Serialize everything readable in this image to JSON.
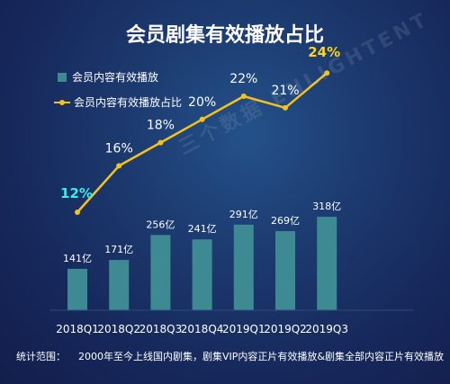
{
  "chart_data": {
    "type": "bar+line",
    "title": "会员剧集有效播放占比",
    "categories": [
      "2018Q1",
      "2018Q2",
      "2018Q3",
      "2018Q4",
      "2019Q1",
      "2019Q2",
      "2019Q3"
    ],
    "series": [
      {
        "name": "会员内容有效播放",
        "kind": "bar",
        "values": [
          141,
          171,
          256,
          241,
          291,
          269,
          318
        ],
        "labels": [
          "141亿",
          "171亿",
          "256亿",
          "241亿",
          "291亿",
          "269亿",
          "318亿"
        ],
        "color": "#3d8a92"
      },
      {
        "name": "会员内容有效播放占比",
        "kind": "line",
        "values": [
          12,
          16,
          18,
          20,
          22,
          21,
          24
        ],
        "labels": [
          "12%",
          "16%",
          "18%",
          "20%",
          "22%",
          "21%",
          "24%"
        ],
        "color": "#f7c217"
      }
    ],
    "highlight_colors": {
      "first": "#35f0ea",
      "last": "#ffd21e",
      "default": "#ffffff"
    },
    "legend": "top-left",
    "grid": false
  },
  "watermark": "三个数据 ENLIGHTENT",
  "footnote": {
    "label": "统计范围：",
    "text": "2000年至今上线国内剧集，剧集VIP内容正片有效播放&剧集全部内容正片有效播放"
  }
}
